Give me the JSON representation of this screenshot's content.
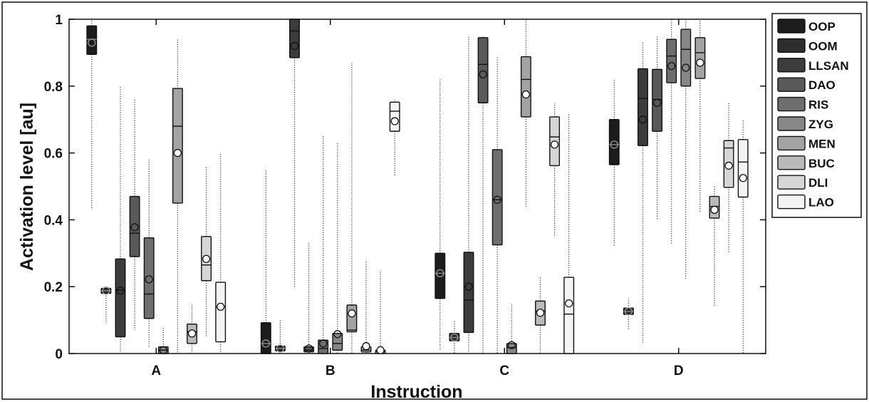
{
  "chart_data": {
    "type": "box",
    "xlabel": "Instruction",
    "ylabel": "Activation level [au]",
    "ylim": [
      0,
      1
    ],
    "yticks": [
      "0",
      "0.2",
      "0.4",
      "0.6",
      "0.8",
      "1"
    ],
    "categories": [
      "A",
      "B",
      "C",
      "D"
    ],
    "legend_position": "right",
    "series": [
      {
        "name": "OOP",
        "color": "#1c1c1c",
        "boxes": [
          {
            "q1": 0.895,
            "median": 0.94,
            "q3": 0.98,
            "mean": 0.93,
            "wlo": 0.43,
            "whi": 1.0
          },
          {
            "q1": 0.0,
            "median": 0.03,
            "q3": 0.092,
            "mean": 0.03,
            "wlo": 0.0,
            "whi": 0.55
          },
          {
            "q1": 0.165,
            "median": 0.24,
            "q3": 0.3,
            "mean": 0.24,
            "wlo": 0.01,
            "whi": 0.82
          },
          {
            "q1": 0.565,
            "median": 0.625,
            "q3": 0.7,
            "mean": 0.625,
            "wlo": 0.32,
            "whi": 0.82
          }
        ]
      },
      {
        "name": "OOM",
        "color": "#2d2d2d",
        "boxes": [
          {
            "q1": 0.18,
            "median": 0.188,
            "q3": 0.195,
            "mean": 0.188,
            "wlo": 0.09,
            "whi": 0.2
          },
          {
            "q1": 0.008,
            "median": 0.015,
            "q3": 0.022,
            "mean": 0.015,
            "wlo": 0.0,
            "whi": 0.1
          },
          {
            "q1": 0.038,
            "median": 0.048,
            "q3": 0.06,
            "mean": 0.048,
            "wlo": 0.0,
            "whi": 0.1
          },
          {
            "q1": 0.117,
            "median": 0.126,
            "q3": 0.136,
            "mean": 0.126,
            "wlo": 0.07,
            "whi": 0.165
          }
        ]
      },
      {
        "name": "LLSAN",
        "color": "#3c3c3c",
        "boxes": [
          {
            "q1": 0.05,
            "median": 0.19,
            "q3": 0.283,
            "mean": 0.188,
            "wlo": 0.0,
            "whi": 0.8
          },
          {
            "q1": 0.885,
            "median": 0.965,
            "q3": 1.0,
            "mean": 0.92,
            "wlo": 0.2,
            "whi": 1.0
          },
          {
            "q1": 0.063,
            "median": 0.16,
            "q3": 0.303,
            "mean": 0.2,
            "wlo": 0.0,
            "whi": 0.95
          },
          {
            "q1": 0.622,
            "median": 0.763,
            "q3": 0.852,
            "mean": 0.7,
            "wlo": 0.03,
            "whi": 0.93
          }
        ]
      },
      {
        "name": "DAO",
        "color": "#595959",
        "boxes": [
          {
            "q1": 0.29,
            "median": 0.36,
            "q3": 0.47,
            "mean": 0.378,
            "wlo": 0.07,
            "whi": 0.76
          },
          {
            "q1": 0.005,
            "median": 0.01,
            "q3": 0.02,
            "mean": 0.015,
            "wlo": 0.0,
            "whi": 0.33
          },
          {
            "q1": 0.75,
            "median": 0.865,
            "q3": 0.945,
            "mean": 0.835,
            "wlo": 0.0,
            "whi": 0.95
          },
          {
            "q1": 0.665,
            "median": 0.76,
            "q3": 0.85,
            "mean": 0.75,
            "wlo": 0.4,
            "whi": 0.95
          }
        ]
      },
      {
        "name": "RIS",
        "color": "#6e6e6e",
        "boxes": [
          {
            "q1": 0.105,
            "median": 0.178,
            "q3": 0.346,
            "mean": 0.222,
            "wlo": 0.02,
            "whi": 0.58
          },
          {
            "q1": 0.0,
            "median": 0.015,
            "q3": 0.04,
            "mean": 0.03,
            "wlo": 0.0,
            "whi": 0.65
          },
          {
            "q1": 0.325,
            "median": 0.46,
            "q3": 0.61,
            "mean": 0.46,
            "wlo": 0.0,
            "whi": 0.89
          },
          {
            "q1": 0.81,
            "median": 0.89,
            "q3": 0.94,
            "mean": 0.86,
            "wlo": 0.33,
            "whi": 1.0
          }
        ]
      },
      {
        "name": "ZYG",
        "color": "#878787",
        "boxes": [
          {
            "q1": 0.0,
            "median": 0.01,
            "q3": 0.02,
            "mean": 0.01,
            "wlo": 0.0,
            "whi": 0.08
          },
          {
            "q1": 0.01,
            "median": 0.03,
            "q3": 0.06,
            "mean": 0.058,
            "wlo": 0.0,
            "whi": 0.63
          },
          {
            "q1": 0.0,
            "median": 0.018,
            "q3": 0.03,
            "mean": 0.025,
            "wlo": 0.0,
            "whi": 0.15
          },
          {
            "q1": 0.8,
            "median": 0.91,
            "q3": 0.97,
            "mean": 0.855,
            "wlo": 0.22,
            "whi": 1.0
          }
        ]
      },
      {
        "name": "MEN",
        "color": "#a3a3a3",
        "boxes": [
          {
            "q1": 0.45,
            "median": 0.68,
            "q3": 0.793,
            "mean": 0.6,
            "wlo": 0.0,
            "whi": 0.94
          },
          {
            "q1": 0.065,
            "median": 0.07,
            "q3": 0.145,
            "mean": 0.12,
            "wlo": 0.0,
            "whi": 0.87
          },
          {
            "q1": 0.708,
            "median": 0.82,
            "q3": 0.888,
            "mean": 0.775,
            "wlo": 0.44,
            "whi": 1.0
          },
          {
            "q1": 0.823,
            "median": 0.9,
            "q3": 0.945,
            "mean": 0.87,
            "wlo": 0.42,
            "whi": 1.0
          }
        ]
      },
      {
        "name": "BUC",
        "color": "#bababa",
        "boxes": [
          {
            "q1": 0.03,
            "median": 0.065,
            "q3": 0.088,
            "mean": 0.06,
            "wlo": 0.0,
            "whi": 0.15
          },
          {
            "q1": 0.005,
            "median": 0.01,
            "q3": 0.02,
            "mean": 0.022,
            "wlo": 0.0,
            "whi": 0.28
          },
          {
            "q1": 0.085,
            "median": 0.127,
            "q3": 0.157,
            "mean": 0.122,
            "wlo": 0.0,
            "whi": 0.23
          },
          {
            "q1": 0.405,
            "median": 0.44,
            "q3": 0.47,
            "mean": 0.43,
            "wlo": 0.14,
            "whi": 0.5
          }
        ]
      },
      {
        "name": "DLI",
        "color": "#d6d6d6",
        "boxes": [
          {
            "q1": 0.218,
            "median": 0.265,
            "q3": 0.35,
            "mean": 0.283,
            "wlo": 0.05,
            "whi": 0.56
          },
          {
            "q1": 0.0,
            "median": 0.005,
            "q3": 0.01,
            "mean": 0.01,
            "wlo": 0.0,
            "whi": 0.25
          },
          {
            "q1": 0.562,
            "median": 0.648,
            "q3": 0.708,
            "mean": 0.625,
            "wlo": 0.35,
            "whi": 0.75
          },
          {
            "q1": 0.497,
            "median": 0.615,
            "q3": 0.637,
            "mean": 0.562,
            "wlo": 0.3,
            "whi": 0.75
          }
        ]
      },
      {
        "name": "LAO",
        "color": "#f4f4f4",
        "boxes": [
          {
            "q1": 0.035,
            "median": 0.14,
            "q3": 0.213,
            "mean": 0.14,
            "wlo": 0.0,
            "whi": 0.6
          },
          {
            "q1": 0.665,
            "median": 0.725,
            "q3": 0.752,
            "mean": 0.695,
            "wlo": 0.53,
            "whi": 0.76
          },
          {
            "q1": 0.0,
            "median": 0.118,
            "q3": 0.228,
            "mean": 0.15,
            "wlo": 0.0,
            "whi": 0.72
          },
          {
            "q1": 0.468,
            "median": 0.573,
            "q3": 0.64,
            "mean": 0.525,
            "wlo": 0.0,
            "whi": 0.7
          }
        ]
      }
    ]
  }
}
